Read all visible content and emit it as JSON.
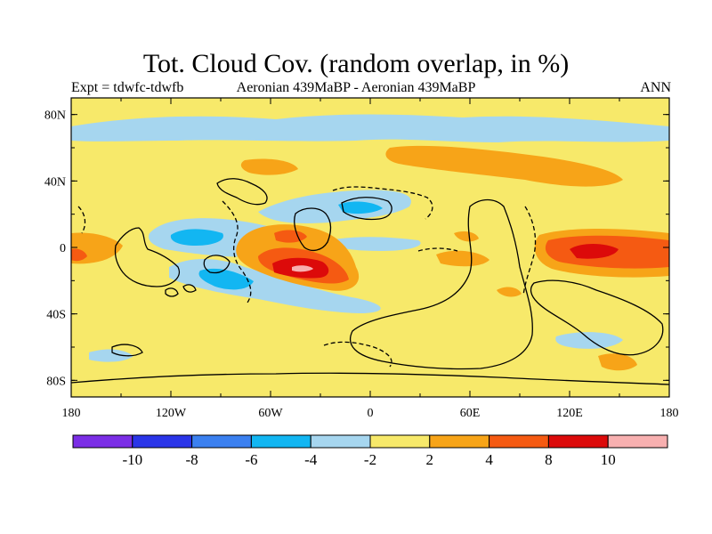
{
  "header": {
    "title": "Tot. Cloud Cov. (random overlap, in %)",
    "left_label": "Expt = tdwfc-tdwfb",
    "center_label": "Aeronian 439MaBP - Aeronian 439MaBP",
    "right_label": "ANN"
  },
  "map": {
    "lon_ticks": [
      "180",
      "120W",
      "60W",
      "0",
      "60E",
      "120E",
      "180"
    ],
    "lat_ticks": [
      "80N",
      "40N",
      "0",
      "40S",
      "80S"
    ],
    "background_color": "#f7e96a",
    "coastline_style": "solid and dashed black lines"
  },
  "colorbar": {
    "labels": [
      "-10",
      "-8",
      "-6",
      "-4",
      "-2",
      "2",
      "4",
      "8",
      "10"
    ],
    "colors": [
      "#7b2ee6",
      "#2a35e8",
      "#3b80f0",
      "#12b6f2",
      "#a6d6ef",
      "#f7e96a",
      "#f7a418",
      "#f55a12",
      "#dc0a0a",
      "#f8b0b0"
    ]
  }
}
